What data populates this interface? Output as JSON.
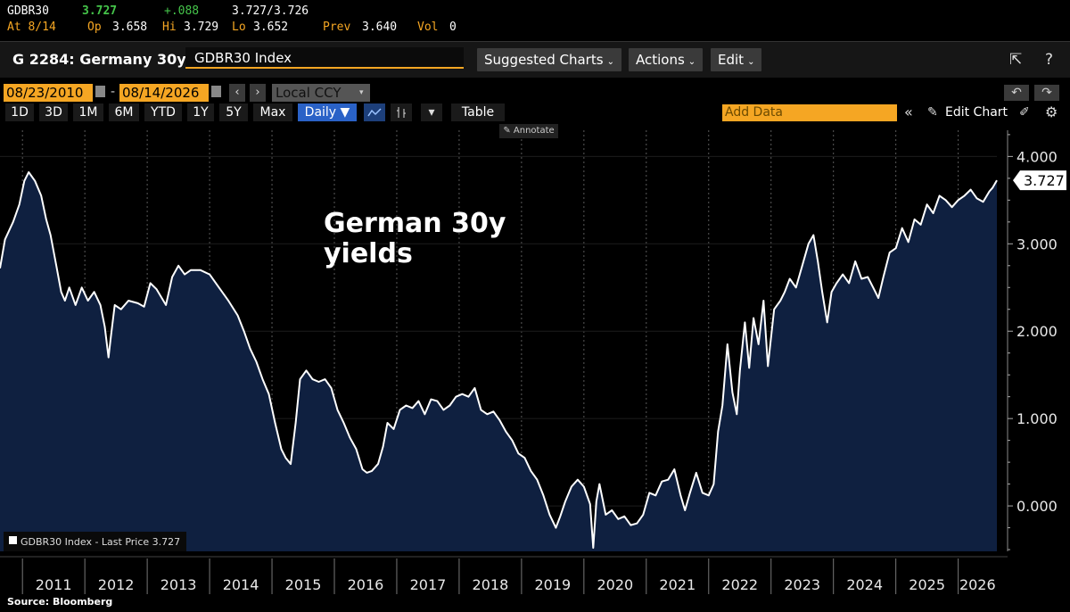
{
  "quote": {
    "ticker": "GDBR30",
    "last": "3.727",
    "change": "+.088",
    "bid_ask": "3.727/3.726",
    "at_label": "At 8/14",
    "op_label": "Op",
    "op_value": "3.658",
    "hi_label": "Hi",
    "hi_value": "3.729",
    "lo_label": "Lo",
    "lo_value": "3.652",
    "prev_label": "Prev",
    "prev_value": "3.640",
    "vol_label": "Vol",
    "vol_value": "0"
  },
  "titlebar": {
    "security_title": "G 2284: Germany 30y",
    "ticker_input": "GDBR30 Index",
    "suggested_charts": "Suggested Charts",
    "actions": "Actions",
    "edit": "Edit"
  },
  "dates": {
    "start": "08/23/2010",
    "end": "08/14/2026",
    "separator": "-",
    "currency": "Local CCY"
  },
  "periods": [
    "1D",
    "3D",
    "1M",
    "6M",
    "YTD",
    "1Y",
    "5Y",
    "Max"
  ],
  "controls": {
    "frequency": "Daily ▼",
    "table": "Table",
    "add_data_placeholder": "Add Data",
    "edit_chart": "Edit Chart",
    "annotate": "Annotate"
  },
  "colors": {
    "line": "#ffffff",
    "area_fill": "#0f2040",
    "accent_orange": "#f5a623",
    "positive_green": "#45c44a"
  },
  "chart_data": {
    "type": "area",
    "title": "German 30y\nyields",
    "legend": "GDBR30 Index - Last Price 3.727",
    "last_value_label": "3.727",
    "x_tick_labels": [
      "2011",
      "2012",
      "2013",
      "2014",
      "2015",
      "2016",
      "2017",
      "2018",
      "2019",
      "2020",
      "2021",
      "2022",
      "2023",
      "2024",
      "2025",
      "2026"
    ],
    "y_tick_labels": [
      "4.000",
      "3.000",
      "2.000",
      "1.000",
      "0.000"
    ],
    "ylim": [
      -0.52,
      4.3
    ],
    "xlim": [
      2010.64,
      2026.62
    ],
    "grid": "vertical dashed",
    "series": [
      {
        "x": [
          2010.64,
          2010.72,
          2010.85,
          2010.95,
          2011.03,
          2011.1,
          2011.2,
          2011.3,
          2011.38,
          2011.45,
          2011.55,
          2011.62,
          2011.68,
          2011.75,
          2011.85,
          2011.95,
          2012.05,
          2012.15,
          2012.25,
          2012.32,
          2012.38,
          2012.42,
          2012.48,
          2012.58,
          2012.7,
          2012.85,
          2012.95,
          2013.05,
          2013.15,
          2013.3,
          2013.4,
          2013.5,
          2013.6,
          2013.7,
          2013.85,
          2014.0,
          2014.15,
          2014.3,
          2014.45,
          2014.55,
          2014.65,
          2014.75,
          2014.85,
          2014.95,
          2015.05,
          2015.15,
          2015.22,
          2015.3,
          2015.38,
          2015.45,
          2015.55,
          2015.65,
          2015.75,
          2015.85,
          2015.95,
          2016.05,
          2016.15,
          2016.25,
          2016.35,
          2016.45,
          2016.52,
          2016.6,
          2016.7,
          2016.78,
          2016.85,
          2016.95,
          2017.05,
          2017.15,
          2017.25,
          2017.35,
          2017.45,
          2017.55,
          2017.65,
          2017.75,
          2017.85,
          2017.95,
          2018.05,
          2018.15,
          2018.25,
          2018.35,
          2018.45,
          2018.55,
          2018.65,
          2018.75,
          2018.85,
          2018.95,
          2019.05,
          2019.15,
          2019.25,
          2019.35,
          2019.45,
          2019.55,
          2019.62,
          2019.7,
          2019.8,
          2019.9,
          2020.0,
          2020.1,
          2020.15,
          2020.2,
          2020.25,
          2020.35,
          2020.45,
          2020.55,
          2020.65,
          2020.75,
          2020.85,
          2020.95,
          2021.05,
          2021.15,
          2021.25,
          2021.35,
          2021.45,
          2021.55,
          2021.62,
          2021.7,
          2021.8,
          2021.9,
          2022.0,
          2022.08,
          2022.15,
          2022.22,
          2022.3,
          2022.38,
          2022.45,
          2022.5,
          2022.58,
          2022.65,
          2022.72,
          2022.8,
          2022.88,
          2022.95,
          2023.05,
          2023.15,
          2023.22,
          2023.3,
          2023.4,
          2023.5,
          2023.6,
          2023.68,
          2023.75,
          2023.82,
          2023.9,
          2023.97,
          2024.05,
          2024.15,
          2024.25,
          2024.35,
          2024.45,
          2024.55,
          2024.65,
          2024.72,
          2024.8,
          2024.9,
          2025.0,
          2025.1,
          2025.2,
          2025.3,
          2025.4,
          2025.5,
          2025.6,
          2025.7,
          2025.8,
          2025.9,
          2026.0,
          2026.1,
          2026.2,
          2026.3,
          2026.4,
          2026.5,
          2026.55,
          2026.62
        ],
        "y": [
          2.72,
          3.05,
          3.25,
          3.45,
          3.72,
          3.82,
          3.72,
          3.55,
          3.28,
          3.1,
          2.72,
          2.45,
          2.35,
          2.5,
          2.3,
          2.5,
          2.35,
          2.45,
          2.3,
          2.05,
          1.7,
          1.95,
          2.3,
          2.25,
          2.35,
          2.32,
          2.28,
          2.55,
          2.48,
          2.3,
          2.62,
          2.75,
          2.65,
          2.7,
          2.7,
          2.65,
          2.5,
          2.35,
          2.18,
          2.0,
          1.8,
          1.65,
          1.45,
          1.28,
          0.95,
          0.65,
          0.55,
          0.48,
          0.95,
          1.45,
          1.55,
          1.45,
          1.42,
          1.45,
          1.35,
          1.1,
          0.95,
          0.78,
          0.65,
          0.42,
          0.38,
          0.4,
          0.48,
          0.68,
          0.95,
          0.88,
          1.1,
          1.15,
          1.12,
          1.2,
          1.05,
          1.22,
          1.2,
          1.1,
          1.15,
          1.25,
          1.28,
          1.25,
          1.35,
          1.1,
          1.05,
          1.08,
          0.98,
          0.85,
          0.75,
          0.6,
          0.55,
          0.4,
          0.3,
          0.12,
          -0.1,
          -0.25,
          -0.12,
          0.05,
          0.22,
          0.3,
          0.22,
          0.02,
          -0.48,
          0.05,
          0.25,
          -0.1,
          -0.05,
          -0.15,
          -0.12,
          -0.22,
          -0.2,
          -0.1,
          0.15,
          0.12,
          0.28,
          0.3,
          0.42,
          0.12,
          -0.05,
          0.15,
          0.38,
          0.15,
          0.12,
          0.25,
          0.85,
          1.15,
          1.85,
          1.3,
          1.05,
          1.55,
          2.1,
          1.58,
          2.15,
          1.85,
          2.35,
          1.6,
          2.25,
          2.35,
          2.45,
          2.6,
          2.5,
          2.75,
          3.0,
          3.1,
          2.8,
          2.45,
          2.1,
          2.45,
          2.55,
          2.65,
          2.55,
          2.8,
          2.6,
          2.62,
          2.48,
          2.38,
          2.62,
          2.9,
          2.95,
          3.18,
          3.02,
          3.28,
          3.22,
          3.45,
          3.35,
          3.55,
          3.5,
          3.42,
          3.5,
          3.55,
          3.62,
          3.52,
          3.48,
          3.6,
          3.64,
          3.727
        ]
      }
    ]
  },
  "footer": "Source: Bloomberg"
}
